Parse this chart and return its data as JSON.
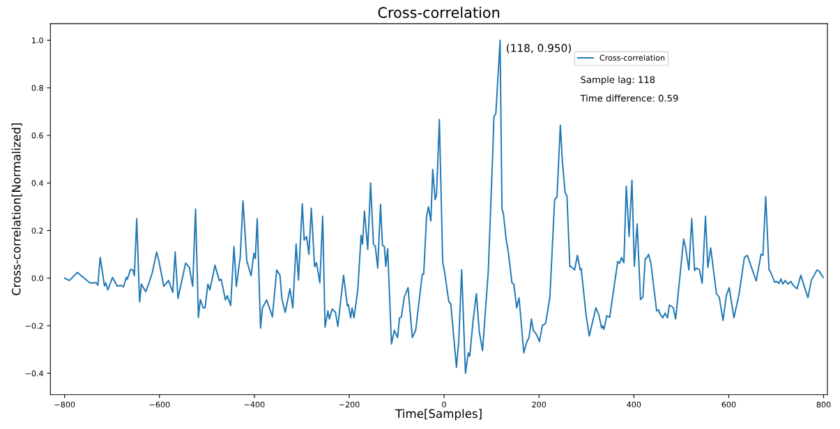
{
  "chart_data": {
    "type": "line",
    "title": "Cross-correlation",
    "xlabel": "Time[Samples]",
    "ylabel": "Cross-correlation[Normalized]",
    "x": [
      -800,
      -790,
      -773,
      -747,
      -733,
      -730,
      -725,
      -716,
      -713,
      -709,
      -699,
      -689,
      -681,
      -676,
      -670,
      -668,
      -661,
      -656,
      -653,
      -648,
      -642,
      -638,
      -634,
      -629,
      -622,
      -615,
      -606,
      -601,
      -591,
      -581,
      -572,
      -567,
      -561,
      -545,
      -537,
      -530,
      -524,
      -518,
      -514,
      -508,
      -504,
      -498,
      -494,
      -490,
      -483,
      -474,
      -470,
      -461,
      -457,
      -450,
      -443,
      -438,
      -431,
      -430,
      -424,
      -416,
      -407,
      -401,
      -398,
      -394,
      -387,
      -383,
      -374,
      -367,
      -362,
      -353,
      -346,
      -342,
      -335,
      -325,
      -319,
      -312,
      -307,
      -299,
      -295,
      -290,
      -285,
      -280,
      -273,
      -269,
      -262,
      -256,
      -251,
      -245,
      -242,
      -236,
      -229,
      -224,
      -212,
      -204,
      -202,
      -197,
      -194,
      -190,
      -182,
      -175,
      -172,
      -168,
      -161,
      -155,
      -149,
      -145,
      -140,
      -134,
      -130,
      -126,
      -123,
      -119,
      -111,
      -105,
      -98,
      -94,
      -90,
      -84,
      -76,
      -67,
      -60,
      -46,
      -43,
      -37,
      -33,
      -28,
      -24,
      -19,
      -16,
      -10,
      -3,
      1,
      10,
      14,
      26,
      31,
      37,
      45,
      51,
      54,
      61,
      68,
      74,
      81,
      93,
      103,
      105,
      109,
      118,
      122,
      125,
      131,
      135,
      143,
      147,
      153,
      158,
      168,
      174,
      179,
      184,
      188,
      195,
      201,
      207,
      214,
      223,
      233,
      238,
      245,
      249,
      255,
      259,
      265,
      268,
      275,
      281,
      287,
      289,
      299,
      306,
      320,
      326,
      332,
      334,
      337,
      343,
      349,
      366,
      370,
      374,
      379,
      384,
      390,
      396,
      401,
      407,
      414,
      419,
      424,
      427,
      431,
      436,
      448,
      452,
      455,
      461,
      466,
      471,
      475,
      483,
      488,
      505,
      509,
      516,
      522,
      528,
      531,
      538,
      544,
      551,
      556,
      562,
      574,
      580,
      588,
      595,
      601,
      611,
      622,
      633,
      639,
      651,
      658,
      668,
      672,
      678,
      685,
      687,
      697,
      701,
      706,
      710,
      714,
      719,
      725,
      731,
      736,
      744,
      752,
      760,
      767,
      774,
      786,
      790,
      799
    ],
    "series": [
      {
        "name": "Cross-correlation",
        "color": "#1f77b4",
        "values": [
          0.0,
          -0.01,
          0.024,
          -0.02,
          -0.02,
          -0.03,
          0.087,
          -0.033,
          -0.02,
          -0.05,
          0.003,
          -0.034,
          -0.03,
          -0.037,
          0.003,
          -0.005,
          0.037,
          0.034,
          0.01,
          0.25,
          -0.1,
          -0.025,
          -0.04,
          -0.057,
          -0.02,
          0.025,
          0.11,
          0.07,
          -0.035,
          -0.01,
          -0.06,
          0.11,
          -0.085,
          0.063,
          0.045,
          -0.035,
          0.29,
          -0.165,
          -0.09,
          -0.125,
          -0.125,
          -0.025,
          -0.05,
          -0.014,
          0.054,
          -0.01,
          -0.005,
          -0.092,
          -0.074,
          -0.115,
          0.133,
          -0.035,
          0.073,
          0.082,
          0.325,
          0.073,
          0.01,
          0.105,
          0.082,
          0.25,
          -0.21,
          -0.125,
          -0.092,
          -0.133,
          -0.163,
          0.034,
          0.012,
          -0.087,
          -0.144,
          -0.045,
          -0.125,
          0.144,
          -0.008,
          0.313,
          0.16,
          0.175,
          0.1,
          0.294,
          0.048,
          0.065,
          -0.02,
          0.26,
          -0.206,
          -0.138,
          -0.172,
          -0.13,
          -0.144,
          -0.203,
          0.012,
          -0.116,
          -0.11,
          -0.167,
          -0.125,
          -0.167,
          -0.05,
          0.18,
          0.143,
          0.282,
          0.12,
          0.4,
          0.143,
          0.133,
          0.042,
          0.31,
          0.138,
          0.133,
          0.05,
          0.124,
          -0.277,
          -0.22,
          -0.25,
          -0.167,
          -0.164,
          -0.08,
          -0.04,
          -0.25,
          -0.22,
          0.017,
          0.017,
          0.26,
          0.3,
          0.24,
          0.457,
          0.33,
          0.35,
          0.667,
          0.068,
          0.025,
          -0.1,
          -0.107,
          -0.375,
          -0.257,
          0.035,
          -0.4,
          -0.314,
          -0.328,
          -0.18,
          -0.065,
          -0.223,
          -0.305,
          0.025,
          0.553,
          0.68,
          0.69,
          1.0,
          0.29,
          0.27,
          0.16,
          0.115,
          -0.02,
          -0.025,
          -0.125,
          -0.083,
          -0.314,
          -0.27,
          -0.25,
          -0.172,
          -0.22,
          -0.237,
          -0.267,
          -0.2,
          -0.19,
          -0.08,
          0.33,
          0.342,
          0.643,
          0.5,
          0.36,
          0.345,
          0.048,
          0.048,
          0.034,
          0.096,
          0.034,
          0.04,
          -0.15,
          -0.243,
          -0.125,
          -0.153,
          -0.21,
          -0.2,
          -0.215,
          -0.158,
          -0.165,
          0.07,
          0.062,
          0.087,
          0.065,
          0.387,
          0.175,
          0.412,
          0.05,
          0.228,
          -0.09,
          -0.08,
          0.082,
          0.085,
          0.1,
          0.062,
          -0.138,
          -0.133,
          -0.15,
          -0.167,
          -0.147,
          -0.167,
          -0.113,
          -0.124,
          -0.172,
          0.164,
          0.13,
          0.034,
          0.25,
          0.031,
          0.042,
          0.037,
          -0.022,
          0.26,
          0.045,
          0.127,
          -0.065,
          -0.08,
          -0.178,
          -0.073,
          -0.04,
          -0.167,
          -0.065,
          0.087,
          0.096,
          0.028,
          -0.012,
          0.1,
          0.096,
          0.342,
          0.034,
          0.031,
          -0.017,
          -0.014,
          -0.022,
          -0.003,
          -0.025,
          -0.01,
          -0.025,
          -0.014,
          -0.031,
          -0.045,
          0.012,
          -0.04,
          -0.082,
          -0.01,
          0.034,
          0.031,
          0.003
        ]
      }
    ],
    "xlim": [
      -830,
      808
    ],
    "ylim": [
      -0.49,
      1.07
    ],
    "xticks": [
      {
        "value": -800,
        "label": "−800"
      },
      {
        "value": -600,
        "label": "−600"
      },
      {
        "value": -400,
        "label": "−400"
      },
      {
        "value": -200,
        "label": "−200"
      },
      0,
      200,
      400,
      600,
      800
    ],
    "yticks": [
      {
        "value": -0.4,
        "label": "−0.4"
      },
      {
        "value": -0.2,
        "label": "−0.2"
      },
      {
        "value": 0,
        "label": "0.0"
      },
      0.2,
      0.4,
      0.6,
      0.8,
      {
        "value": 1.0,
        "label": "1.0"
      }
    ],
    "annotations": [
      {
        "text": "(118, 0.950)",
        "x": 118,
        "y": 1.0
      },
      "Sample lag: 118",
      "Time difference: 0.59"
    ],
    "legend": "top right",
    "grid": false,
    "marker": "none",
    "line_style": "solid"
  }
}
